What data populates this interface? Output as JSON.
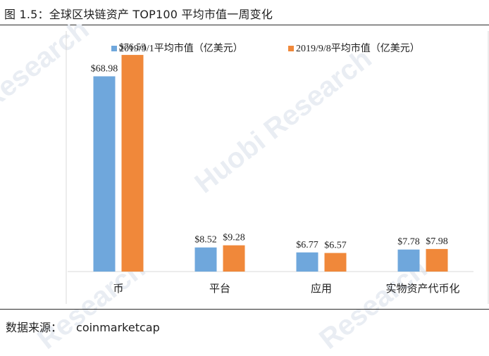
{
  "figure_title": "图 1.5：全球区块链资产 TOP100 平均市值一周变化",
  "source": {
    "label": "数据来源：",
    "value": "coinmarketcap"
  },
  "watermark": [
    "Research",
    "Huobi Research",
    "Research",
    "Research"
  ],
  "chart_data": {
    "type": "bar",
    "title": "",
    "xlabel": "",
    "ylabel": "",
    "ylim": [
      0,
      85
    ],
    "grid": false,
    "legend_position": "top",
    "categories": [
      "币",
      "平台",
      "应用",
      "实物资产代币化"
    ],
    "series": [
      {
        "name": "2019/9/1平均市值（亿美元）",
        "color": "#6fa7dc",
        "values": [
          68.98,
          8.52,
          6.77,
          7.78
        ],
        "labels": [
          "$68.98",
          "$8.52",
          "$6.77",
          "$7.78"
        ]
      },
      {
        "name": "2019/9/8平均市值（亿美元）",
        "color": "#f0883a",
        "values": [
          76.53,
          9.28,
          6.57,
          7.98
        ],
        "labels": [
          "$76.53",
          "$9.28",
          "$6.57",
          "$7.98"
        ]
      }
    ]
  }
}
